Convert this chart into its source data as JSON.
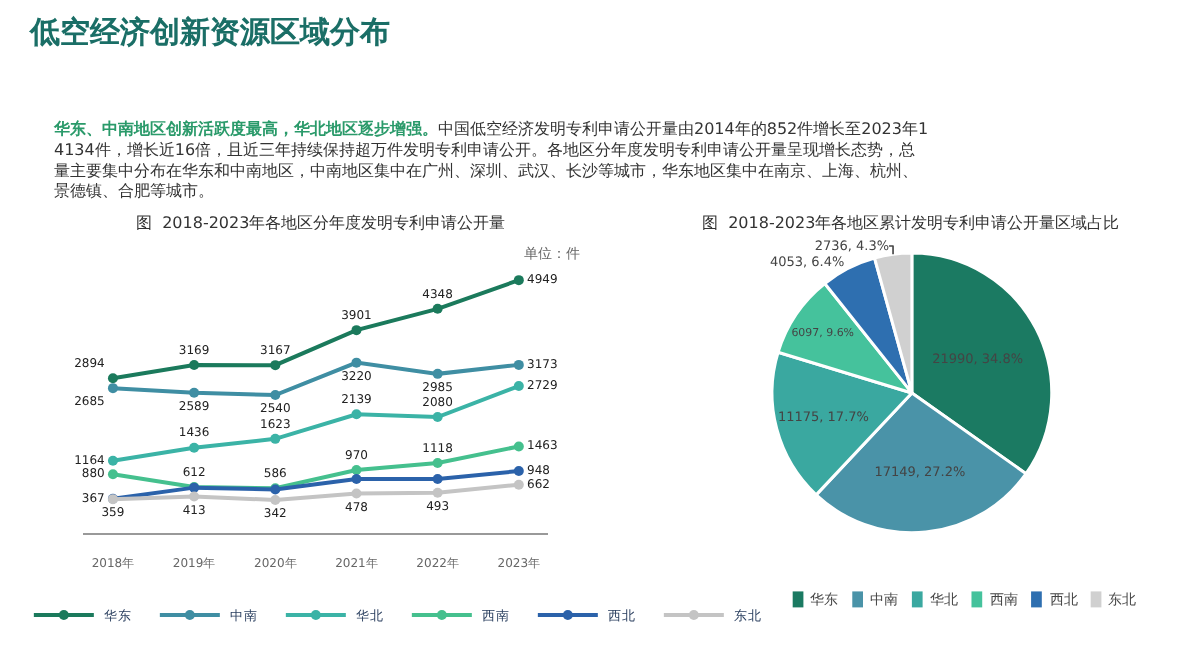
{
  "chart_data": [
    {
      "type": "other",
      "title": "低空经济创新资源区域分布",
      "subtitle": "华东、中南地区创新活跃度最高，华北地区逐步增强。",
      "annotations": [
        "中国低空经济发明专利申请公开量由2014年的852件增长至2023年14134件，增长近16倍，且近三年持续保持超万件发明专利申请公开。各地区分年度发明专利申请公开量呈现增长态势，总量主要集中分布在华东和中南地区，中南地区集中在广州、深圳、武汉、长沙等城市，华东地区集中在南京、上海、杭州、景德镇、合肥等城市。"
      ]
    },
    {
      "type": "line",
      "title": "图  2018-2023年各地区分年度发明专利申请公开量",
      "annotations": [
        "单位：件"
      ],
      "categories": [
        "2018年",
        "2019年",
        "2020年",
        "2021年",
        "2022年",
        "2023年"
      ],
      "marker": "circle",
      "legend": "bottom",
      "tick_labels": "x",
      "series": [
        {
          "name": "华东",
          "color": "#1b7a5c",
          "values": [
            2894,
            3169,
            3167,
            3901,
            4348,
            4949
          ],
          "value_labels": [
            "2894",
            "3169",
            "3167",
            "3901",
            "4348",
            "4949"
          ]
        },
        {
          "name": "中南",
          "color": "#3f8ea3",
          "values": [
            2685,
            2589,
            2540,
            3220,
            2985,
            3173
          ],
          "value_labels": [
            "2685",
            "2589",
            "2540",
            "3220",
            "2985",
            "3173"
          ]
        },
        {
          "name": "华北",
          "color": "#3bb3a6",
          "values": [
            1164,
            1436,
            1623,
            2139,
            2080,
            2729
          ],
          "value_labels": [
            "1164",
            "1436",
            "1623",
            "2139",
            "2080",
            "2729"
          ]
        },
        {
          "name": "西南",
          "color": "#45c08e",
          "values": [
            880,
            612,
            586,
            970,
            1118,
            1463
          ],
          "value_labels": [
            "880",
            "612",
            "586",
            "970",
            "1118",
            "1463"
          ]
        },
        {
          "name": "西北",
          "color": "#2b62aa",
          "values": [
            367,
            600,
            560,
            780,
            780,
            948
          ],
          "value_labels": [
            "367",
            null,
            null,
            null,
            null,
            "948"
          ]
        },
        {
          "name": "东北",
          "color": "#c4c4c4",
          "values": [
            359,
            413,
            342,
            478,
            493,
            662
          ],
          "value_labels": [
            "359",
            "413",
            "342",
            "478",
            "493",
            "662"
          ]
        }
      ]
    },
    {
      "type": "pie",
      "title": "图  2018-2023年各地区累计发明专利申请公开量区域占比",
      "categories": [
        "华东",
        "中南",
        "华北",
        "西南",
        "西北",
        "东北"
      ],
      "values": [
        34.8,
        27.2,
        17.7,
        9.6,
        6.4,
        4.3
      ],
      "colors": [
        "#1b7a62",
        "#4a93a8",
        "#3aa8a0",
        "#45c29c",
        "#2e6fb0",
        "#d0d0d0"
      ],
      "value_labels": [
        "21990, 34.8%",
        "17149, 27.2%",
        "11175, 17.7%",
        "6097, 9.6%",
        "4053, 6.4%",
        "2736, 4.3%"
      ],
      "legend": "bottom"
    }
  ]
}
